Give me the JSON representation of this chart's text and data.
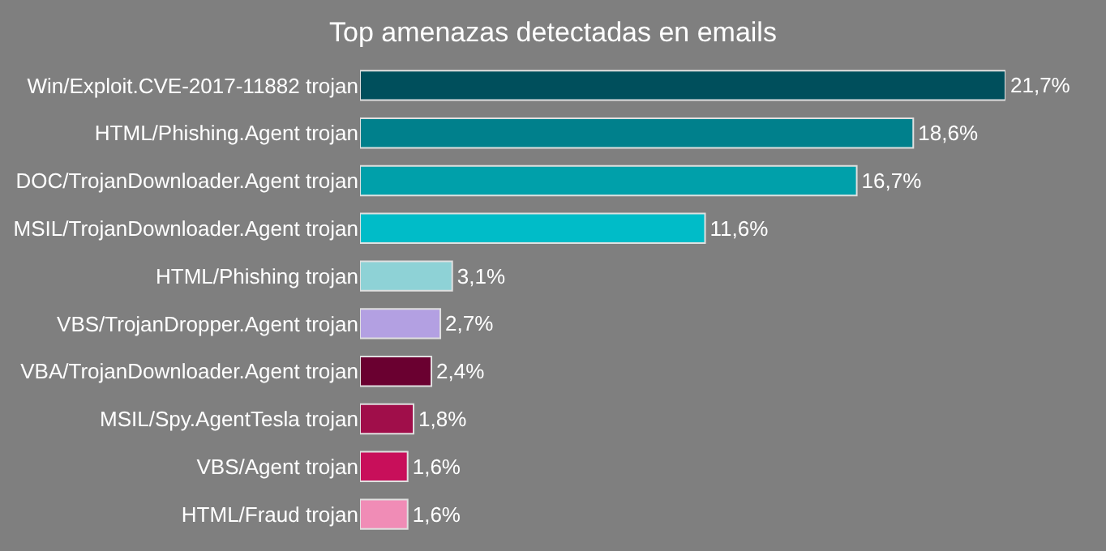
{
  "chart_data": {
    "type": "bar",
    "orientation": "horizontal",
    "title": "Top amenazas detectadas en emails",
    "categories": [
      "Win/Exploit.CVE-2017-11882 trojan",
      "HTML/Phishing.Agent trojan",
      "DOC/TrojanDownloader.Agent trojan",
      "MSIL/TrojanDownloader.Agent trojan",
      "HTML/Phishing trojan",
      "VBS/TrojanDropper.Agent trojan",
      "VBA/TrojanDownloader.Agent trojan",
      "MSIL/Spy.AgentTesla trojan",
      "VBS/Agent trojan",
      "HTML/Fraud trojan"
    ],
    "values": [
      21.7,
      18.6,
      16.7,
      11.6,
      3.1,
      2.7,
      2.4,
      1.8,
      1.6,
      1.6
    ],
    "value_labels": [
      "21,7%",
      "18,6%",
      "16,7%",
      "11,6%",
      "3,1%",
      "2,7%",
      "2,4%",
      "1,8%",
      "1,6%",
      "1,6%"
    ],
    "colors": [
      "#004f5c",
      "#00808c",
      "#00a0aa",
      "#00bcc8",
      "#8ed2d6",
      "#b3a0e2",
      "#6a0030",
      "#a00e4a",
      "#c80f5a",
      "#f08cb6"
    ],
    "grid": false,
    "legend": false
  }
}
